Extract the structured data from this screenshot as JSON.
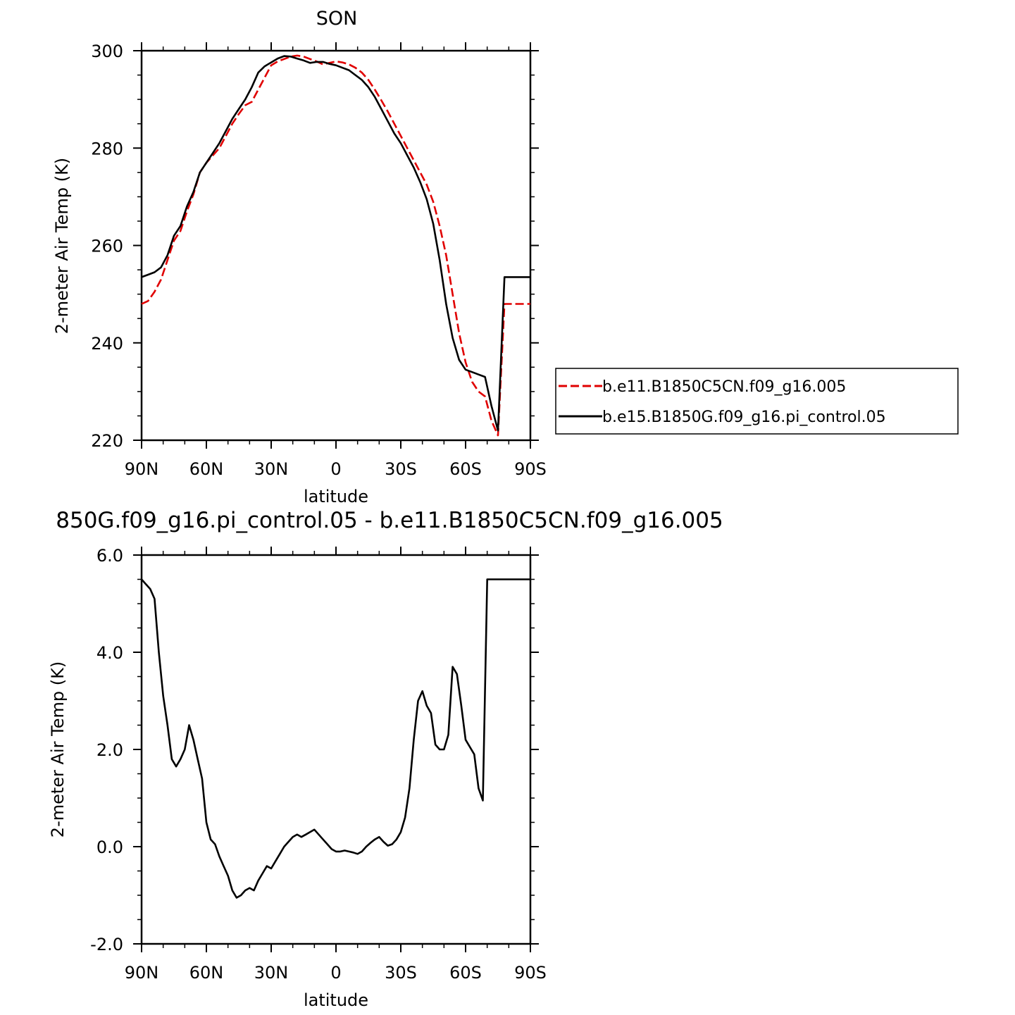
{
  "chart_data": [
    {
      "type": "line",
      "title": "SON",
      "xlabel": "latitude",
      "ylabel": "2-meter Air Temp (K)",
      "x_tick_labels": [
        "90N",
        "60N",
        "30N",
        "0",
        "30S",
        "60S",
        "90S"
      ],
      "y_tick_labels": [
        "220",
        "240",
        "260",
        "280",
        "300"
      ],
      "xlim": [
        -90,
        90
      ],
      "ylim": [
        220,
        300
      ],
      "x_note": "x values are latitude with north positive; the axis runs 90N (left) to 90S (right)",
      "legend_position": "right, outside plot",
      "series": [
        {
          "name": "b.e11.B1850C5CN.f09_g16.005",
          "color": "#e00000",
          "dash": "dashed",
          "x": [
            90,
            87,
            84,
            81,
            78,
            75,
            72,
            69,
            66,
            63,
            60,
            57,
            54,
            51,
            48,
            45,
            42,
            39,
            36,
            33,
            30,
            27,
            24,
            21,
            18,
            15,
            12,
            9,
            6,
            3,
            0,
            -3,
            -6,
            -9,
            -12,
            -15,
            -18,
            -21,
            -24,
            -27,
            -30,
            -33,
            -36,
            -39,
            -42,
            -45,
            -48,
            -51,
            -54,
            -57,
            -60,
            -63,
            -66,
            -69,
            -72,
            -75,
            -78,
            -81,
            -84,
            -87,
            -90
          ],
          "y": [
            248,
            248.6,
            250.5,
            253,
            257,
            261,
            263,
            267,
            270.5,
            275,
            277,
            278.5,
            280,
            282.5,
            285,
            287,
            288.8,
            289.5,
            292,
            294.5,
            297,
            297.8,
            298.3,
            298.8,
            299,
            298.8,
            298.3,
            297.8,
            297.2,
            297.5,
            297.8,
            297.6,
            297.2,
            296.5,
            295.5,
            294,
            292,
            289.8,
            287.5,
            285,
            282.5,
            280,
            277.5,
            275,
            272.5,
            269,
            264,
            258,
            250,
            242,
            236,
            232,
            230,
            229,
            224,
            221,
            248,
            248,
            248,
            248,
            248
          ]
        },
        {
          "name": "b.e15.B1850G.f09_g16.pi_control.05",
          "color": "#000000",
          "dash": "solid",
          "x": [
            90,
            87,
            84,
            81,
            78,
            75,
            72,
            69,
            66,
            63,
            60,
            57,
            54,
            51,
            48,
            45,
            42,
            39,
            36,
            33,
            30,
            27,
            24,
            21,
            18,
            15,
            12,
            9,
            6,
            3,
            0,
            -3,
            -6,
            -9,
            -12,
            -15,
            -18,
            -21,
            -24,
            -27,
            -30,
            -33,
            -36,
            -39,
            -42,
            -45,
            -48,
            -51,
            -54,
            -57,
            -60,
            -63,
            -66,
            -69,
            -72,
            -75,
            -78,
            -81,
            -84,
            -87,
            -90
          ],
          "y": [
            253.5,
            254,
            254.5,
            255.5,
            258,
            262,
            264,
            268,
            271,
            275,
            277,
            279,
            281,
            283.5,
            286,
            288,
            290,
            292.5,
            295.5,
            296.8,
            297.6,
            298.4,
            298.9,
            298.8,
            298.4,
            298,
            297.5,
            297.7,
            297.7,
            297.3,
            297,
            296.5,
            296,
            295,
            294,
            292.5,
            290.5,
            288,
            285.5,
            283,
            281,
            278.5,
            276,
            273,
            269.5,
            264.5,
            257,
            248,
            241,
            236.5,
            234.5,
            234,
            233.5,
            233,
            227,
            222,
            253.5,
            253.5,
            253.5,
            253.5,
            253.5
          ]
        }
      ]
    },
    {
      "type": "line",
      "title": "850G.f09_g16.pi_control.05 - b.e11.B1850C5CN.f09_g16.005",
      "xlabel": "latitude",
      "ylabel": "2-meter Air Temp (K)",
      "x_tick_labels": [
        "90N",
        "60N",
        "30N",
        "0",
        "30S",
        "60S",
        "90S"
      ],
      "y_tick_labels": [
        "-2.0",
        "0.0",
        "2.0",
        "4.0",
        "6.0"
      ],
      "xlim": [
        -90,
        90
      ],
      "ylim": [
        -2,
        6
      ],
      "x_note": "x values are latitude with north positive; the axis runs 90N (left) to 90S (right)",
      "series": [
        {
          "color": "#000000",
          "dash": "solid",
          "x": [
            90,
            88,
            86,
            84,
            82,
            80,
            78,
            76,
            74,
            72,
            70,
            68,
            66,
            64,
            62,
            60,
            58,
            56,
            54,
            52,
            50,
            48,
            46,
            44,
            42,
            40,
            38,
            36,
            34,
            32,
            30,
            28,
            26,
            24,
            22,
            20,
            18,
            16,
            14,
            12,
            10,
            8,
            6,
            4,
            2,
            0,
            -2,
            -4,
            -6,
            -8,
            -10,
            -12,
            -14,
            -16,
            -18,
            -20,
            -22,
            -24,
            -26,
            -28,
            -30,
            -32,
            -34,
            -36,
            -38,
            -40,
            -42,
            -44,
            -46,
            -48,
            -50,
            -52,
            -54,
            -56,
            -58,
            -60,
            -62,
            -64,
            -66,
            -68,
            -70,
            -72,
            -74,
            -76,
            -78,
            -80,
            -82,
            -84,
            -86,
            -88,
            -90
          ],
          "y": [
            5.5,
            5.4,
            5.3,
            5.1,
            4.0,
            3.1,
            2.5,
            1.8,
            1.65,
            1.8,
            2.0,
            2.5,
            2.2,
            1.8,
            1.4,
            0.5,
            0.15,
            0.05,
            -0.2,
            -0.4,
            -0.6,
            -0.9,
            -1.05,
            -1.0,
            -0.9,
            -0.85,
            -0.9,
            -0.7,
            -0.55,
            -0.4,
            -0.45,
            -0.3,
            -0.15,
            0.0,
            0.1,
            0.2,
            0.25,
            0.2,
            0.25,
            0.3,
            0.35,
            0.25,
            0.15,
            0.05,
            -0.05,
            -0.1,
            -0.1,
            -0.08,
            -0.1,
            -0.12,
            -0.15,
            -0.1,
            0.0,
            0.08,
            0.15,
            0.2,
            0.1,
            0.02,
            0.05,
            0.15,
            0.3,
            0.6,
            1.2,
            2.2,
            3.0,
            3.2,
            2.9,
            2.75,
            2.1,
            2.0,
            2.0,
            2.3,
            3.7,
            3.55,
            2.9,
            2.2,
            2.05,
            1.9,
            1.2,
            0.95,
            5.5,
            5.5,
            5.5,
            5.5,
            5.5,
            5.5,
            5.5,
            5.5,
            5.5,
            5.5,
            5.5
          ]
        }
      ]
    }
  ]
}
